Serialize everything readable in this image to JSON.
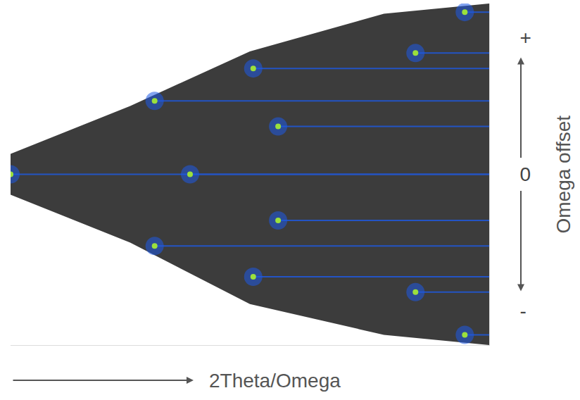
{
  "chart_data": {
    "type": "scatter",
    "x_label": "2Theta/Omega",
    "y_label": "Omega offset",
    "xlim": [
      0,
      100
    ],
    "ylim": [
      -10,
      10
    ],
    "xticks": [],
    "yticks": [
      {
        "value": 8,
        "label": "+"
      },
      {
        "value": 0,
        "label": "0"
      },
      {
        "value": -8,
        "label": "-"
      }
    ],
    "tick_labels": "y",
    "grid": false,
    "series": [
      {
        "color": "#1e5ae6",
        "marker": "circle",
        "x": [
          0,
          37.5,
          55.9,
          55.9,
          30.1,
          30.1,
          50.7,
          50.7,
          84.6,
          84.6,
          94.9,
          94.9
        ],
        "values": [
          0,
          0,
          2.8,
          -2.7,
          4.3,
          -4.2,
          6.2,
          -6.0,
          7.1,
          -6.9,
          9.5,
          -9.4
        ]
      }
    ]
  }
}
